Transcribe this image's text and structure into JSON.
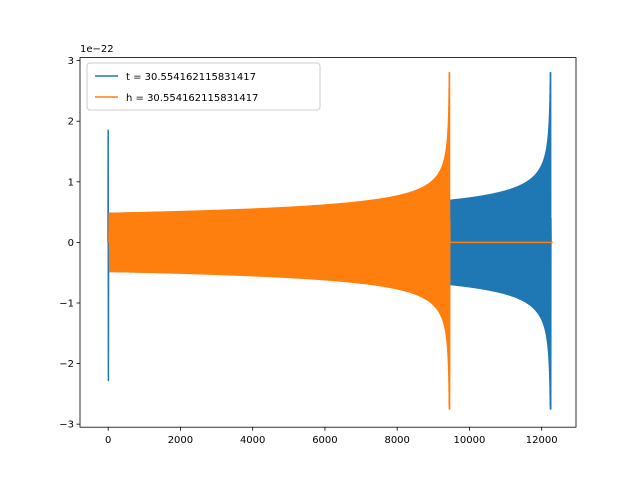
{
  "chart_data": {
    "type": "line",
    "title": "",
    "xlabel": "",
    "ylabel": "",
    "y_offset_label": "1e−22",
    "xlim": [
      -780,
      12950
    ],
    "ylim": [
      -3.05,
      3.05
    ],
    "x_ticks": [
      0,
      2000,
      4000,
      6000,
      8000,
      10000,
      12000
    ],
    "x_tick_labels": [
      "0",
      "2000",
      "4000",
      "6000",
      "8000",
      "10000",
      "12000"
    ],
    "y_ticks": [
      -3,
      -2,
      -1,
      0,
      1,
      2,
      3
    ],
    "y_tick_labels": [
      "−3",
      "−2",
      "−1",
      "0",
      "1",
      "2",
      "3"
    ],
    "grid": false,
    "legend_position": "upper-left",
    "series": [
      {
        "name": "t = 30.554162115831417",
        "color": "#1f77b4",
        "description": "chirp waveform with initial spike at x≈0 and merger peak near x≈12250",
        "start_spike": {
          "x": 0,
          "max": 1.85,
          "min": -2.28
        },
        "oscillation_start_x": 30,
        "merger_x": 12250,
        "amplitude_at_start": 0.48,
        "amplitude_near_9500": 0.63,
        "amplitude_at_11000": 0.9,
        "peak_max": 2.8,
        "peak_min": -2.75,
        "end_x": 12300,
        "tail_value": 0
      },
      {
        "name": "h = 30.554162115831417",
        "color": "#ff7f0e",
        "description": "chirp waveform with merger peak near x≈9450, zero afterwards",
        "oscillation_start_x": 30,
        "merger_x": 9450,
        "amplitude_at_start": 0.48,
        "amplitude_at_6000": 0.6,
        "amplitude_at_8000": 0.8,
        "peak_max": 2.8,
        "peak_min": -2.75,
        "end_x": 12300,
        "tail_value": 0
      }
    ]
  }
}
